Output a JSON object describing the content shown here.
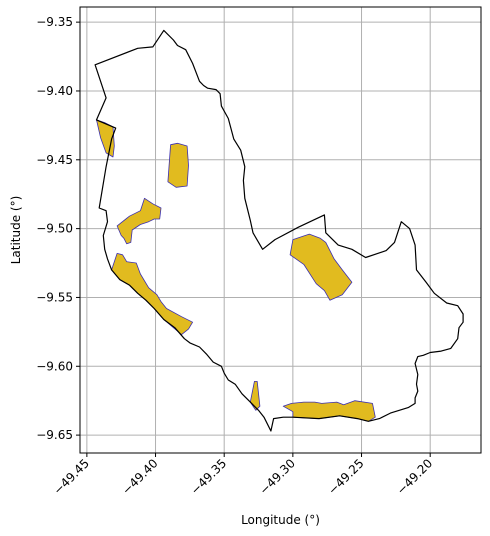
{
  "chart_data": {
    "type": "map",
    "xlabel": "Longitude (°)",
    "ylabel": "Latitude (°)",
    "xlim": [
      -49.455,
      -49.163
    ],
    "ylim": [
      -9.663,
      -9.339
    ],
    "x_ticks": [
      -49.45,
      -49.4,
      -49.35,
      -49.3,
      -49.25,
      -49.2
    ],
    "x_tick_labels": [
      "−49.45",
      "−49.40",
      "−49.35",
      "−49.30",
      "−49.25",
      "−49.20"
    ],
    "y_ticks": [
      -9.35,
      -9.4,
      -9.45,
      -9.5,
      -9.55,
      -9.6,
      -9.65
    ],
    "y_tick_labels": [
      "−9.35",
      "−9.40",
      "−9.45",
      "−9.50",
      "−9.55",
      "−9.60",
      "−9.65"
    ],
    "grid": true,
    "colors": {
      "boundary": "#000000",
      "patch_fill": "#e1bb1f",
      "patch_edge": "#3b2fb2",
      "grid": "#b0b0b0"
    },
    "boundary": [
      [
        -49.444,
        -9.381
      ],
      [
        -49.413,
        -9.369
      ],
      [
        -49.402,
        -9.368
      ],
      [
        -49.394,
        -9.356
      ],
      [
        -49.387,
        -9.363
      ],
      [
        -49.384,
        -9.367
      ],
      [
        -49.378,
        -9.37
      ],
      [
        -49.373,
        -9.38
      ],
      [
        -49.368,
        -9.393
      ],
      [
        -49.365,
        -9.396
      ],
      [
        -49.362,
        -9.398
      ],
      [
        -49.356,
        -9.399
      ],
      [
        -49.353,
        -9.402
      ],
      [
        -49.352,
        -9.411
      ],
      [
        -49.347,
        -9.42
      ],
      [
        -49.343,
        -9.435
      ],
      [
        -49.338,
        -9.443
      ],
      [
        -49.335,
        -9.455
      ],
      [
        -49.336,
        -9.465
      ],
      [
        -49.335,
        -9.478
      ],
      [
        -49.331,
        -9.494
      ],
      [
        -49.329,
        -9.503
      ],
      [
        -49.322,
        -9.515
      ],
      [
        -49.313,
        -9.508
      ],
      [
        -49.296,
        -9.499
      ],
      [
        -49.277,
        -9.49
      ],
      [
        -49.276,
        -9.503
      ],
      [
        -49.267,
        -9.512
      ],
      [
        -49.257,
        -9.515
      ],
      [
        -49.247,
        -9.521
      ],
      [
        -49.232,
        -9.516
      ],
      [
        -49.226,
        -9.51
      ],
      [
        -49.221,
        -9.495
      ],
      [
        -49.215,
        -9.5
      ],
      [
        -49.211,
        -9.512
      ],
      [
        -49.21,
        -9.53
      ],
      [
        -49.203,
        -9.539
      ],
      [
        -49.197,
        -9.547
      ],
      [
        -49.188,
        -9.554
      ],
      [
        -49.18,
        -9.556
      ],
      [
        -49.176,
        -9.562
      ],
      [
        -49.176,
        -9.568
      ],
      [
        -49.179,
        -9.572
      ],
      [
        -49.18,
        -9.58
      ],
      [
        -49.185,
        -9.587
      ],
      [
        -49.192,
        -9.589
      ],
      [
        -49.2,
        -9.59
      ],
      [
        -49.205,
        -9.592
      ],
      [
        -49.209,
        -9.593
      ],
      [
        -49.211,
        -9.598
      ],
      [
        -49.209,
        -9.606
      ],
      [
        -49.21,
        -9.613
      ],
      [
        -49.209,
        -9.618
      ],
      [
        -49.211,
        -9.623
      ],
      [
        -49.211,
        -9.627
      ],
      [
        -49.216,
        -9.63
      ],
      [
        -49.229,
        -9.634
      ],
      [
        -49.237,
        -9.638
      ],
      [
        -49.245,
        -9.64
      ],
      [
        -49.253,
        -9.638
      ],
      [
        -49.266,
        -9.636
      ],
      [
        -49.281,
        -9.638
      ],
      [
        -49.3,
        -9.637
      ],
      [
        -49.307,
        -9.637
      ],
      [
        -49.314,
        -9.638
      ],
      [
        -49.316,
        -9.647
      ],
      [
        -49.321,
        -9.637
      ],
      [
        -49.325,
        -9.632
      ],
      [
        -49.331,
        -9.626
      ],
      [
        -49.337,
        -9.62
      ],
      [
        -49.342,
        -9.613
      ],
      [
        -49.347,
        -9.61
      ],
      [
        -49.35,
        -9.605
      ],
      [
        -49.352,
        -9.6
      ],
      [
        -49.358,
        -9.597
      ],
      [
        -49.363,
        -9.591
      ],
      [
        -49.368,
        -9.586
      ],
      [
        -49.375,
        -9.583
      ],
      [
        -49.379,
        -9.58
      ],
      [
        -49.386,
        -9.572
      ],
      [
        -49.394,
        -9.566
      ],
      [
        -49.401,
        -9.558
      ],
      [
        -49.407,
        -9.552
      ],
      [
        -49.413,
        -9.547
      ],
      [
        -49.419,
        -9.541
      ],
      [
        -49.426,
        -9.537
      ],
      [
        -49.432,
        -9.53
      ],
      [
        -49.435,
        -9.522
      ],
      [
        -49.437,
        -9.515
      ],
      [
        -49.438,
        -9.505
      ],
      [
        -49.435,
        -9.495
      ],
      [
        -49.436,
        -9.487
      ],
      [
        -49.441,
        -9.485
      ],
      [
        -49.436,
        -9.455
      ],
      [
        -49.432,
        -9.435
      ],
      [
        -49.429,
        -9.427
      ],
      [
        -49.443,
        -9.421
      ],
      [
        -49.436,
        -9.405
      ],
      [
        -49.444,
        -9.381
      ]
    ],
    "patches": [
      [
        [
          -49.443,
          -9.421
        ],
        [
          -49.437,
          -9.423
        ],
        [
          -49.431,
          -9.426
        ],
        [
          -49.43,
          -9.44
        ],
        [
          -49.431,
          -9.448
        ],
        [
          -49.436,
          -9.445
        ],
        [
          -49.44,
          -9.434
        ]
      ],
      [
        [
          -49.389,
          -9.439
        ],
        [
          -49.384,
          -9.438
        ],
        [
          -49.377,
          -9.44
        ],
        [
          -49.376,
          -9.454
        ],
        [
          -49.377,
          -9.469
        ],
        [
          -49.385,
          -9.47
        ],
        [
          -49.391,
          -9.466
        ],
        [
          -49.39,
          -9.452
        ]
      ],
      [
        [
          -49.411,
          -9.487
        ],
        [
          -49.419,
          -9.491
        ],
        [
          -49.428,
          -9.498
        ],
        [
          -49.425,
          -9.505
        ],
        [
          -49.423,
          -9.507
        ],
        [
          -49.421,
          -9.511
        ],
        [
          -49.418,
          -9.51
        ],
        [
          -49.417,
          -9.501
        ],
        [
          -49.411,
          -9.497
        ],
        [
          -49.405,
          -9.495
        ],
        [
          -49.401,
          -9.493
        ],
        [
          -49.397,
          -9.493
        ],
        [
          -49.396,
          -9.485
        ],
        [
          -49.402,
          -9.482
        ],
        [
          -49.408,
          -9.478
        ]
      ],
      [
        [
          -49.3,
          -9.508
        ],
        [
          -49.288,
          -9.504
        ],
        [
          -49.28,
          -9.507
        ],
        [
          -49.276,
          -9.51
        ],
        [
          -49.27,
          -9.522
        ],
        [
          -49.264,
          -9.53
        ],
        [
          -49.257,
          -9.539
        ],
        [
          -49.264,
          -9.548
        ],
        [
          -49.273,
          -9.552
        ],
        [
          -49.277,
          -9.545
        ],
        [
          -49.283,
          -9.54
        ],
        [
          -49.292,
          -9.526
        ],
        [
          -49.302,
          -9.519
        ]
      ],
      [
        [
          -49.428,
          -9.518
        ],
        [
          -49.424,
          -9.519
        ],
        [
          -49.421,
          -9.524
        ],
        [
          -49.414,
          -9.525
        ],
        [
          -49.411,
          -9.533
        ],
        [
          -49.405,
          -9.543
        ],
        [
          -49.399,
          -9.548
        ],
        [
          -49.396,
          -9.553
        ],
        [
          -49.392,
          -9.558
        ],
        [
          -49.381,
          -9.564
        ],
        [
          -49.373,
          -9.568
        ],
        [
          -49.376,
          -9.573
        ],
        [
          -49.381,
          -9.577
        ],
        [
          -49.387,
          -9.572
        ],
        [
          -49.394,
          -9.566
        ],
        [
          -49.401,
          -9.558
        ],
        [
          -49.407,
          -9.552
        ],
        [
          -49.413,
          -9.547
        ],
        [
          -49.419,
          -9.541
        ],
        [
          -49.426,
          -9.537
        ],
        [
          -49.432,
          -9.53
        ]
      ],
      [
        [
          -49.328,
          -9.611
        ],
        [
          -49.326,
          -9.611
        ],
        [
          -49.324,
          -9.629
        ],
        [
          -49.327,
          -9.632
        ],
        [
          -49.331,
          -9.626
        ]
      ],
      [
        [
          -49.307,
          -9.629
        ],
        [
          -49.3,
          -9.633
        ],
        [
          -49.3,
          -9.637
        ],
        [
          -49.281,
          -9.638
        ],
        [
          -49.266,
          -9.636
        ],
        [
          -49.253,
          -9.638
        ],
        [
          -49.245,
          -9.64
        ],
        [
          -49.24,
          -9.637
        ],
        [
          -49.242,
          -9.627
        ],
        [
          -49.255,
          -9.625
        ],
        [
          -49.263,
          -9.628
        ],
        [
          -49.268,
          -9.626
        ],
        [
          -49.279,
          -9.627
        ],
        [
          -49.284,
          -9.626
        ],
        [
          -49.292,
          -9.626
        ],
        [
          -49.301,
          -9.627
        ]
      ]
    ]
  }
}
